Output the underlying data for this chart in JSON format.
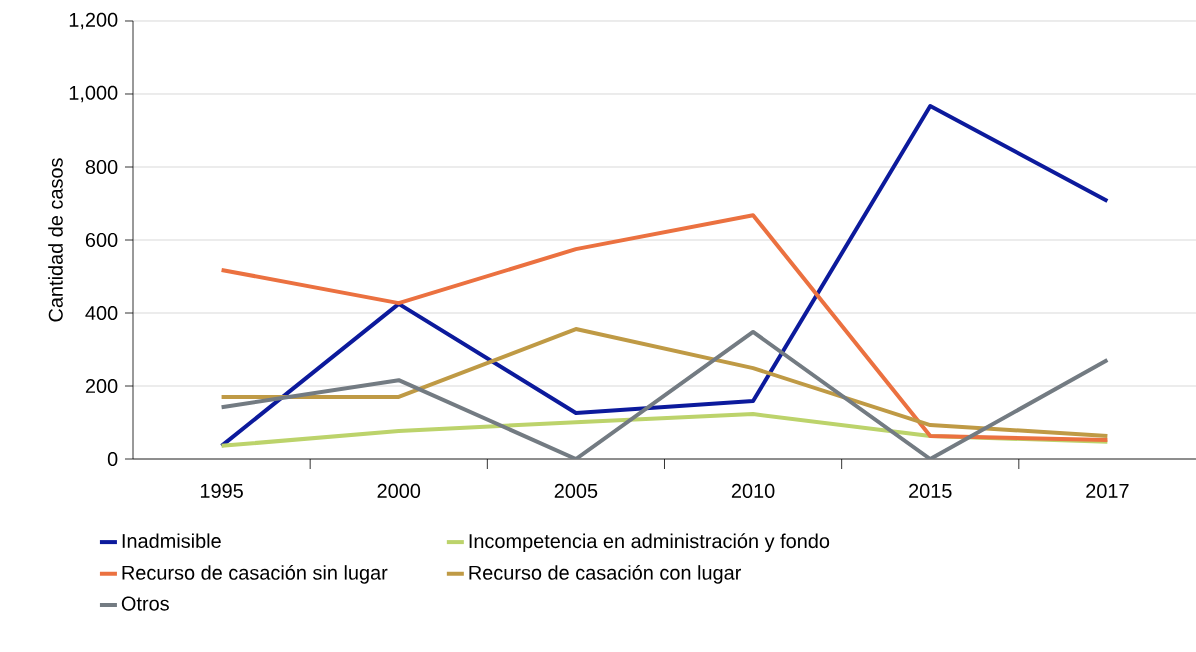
{
  "chart_data": {
    "type": "line",
    "ylabel": "Cantidad de casos",
    "categories": [
      "1995",
      "2000",
      "2005",
      "2010",
      "2015",
      "2017"
    ],
    "ylim": [
      0,
      1200
    ],
    "yticks": [
      0,
      200,
      400,
      600,
      800,
      {
        "value": 1000,
        "label": "1,000"
      },
      {
        "value": 1200,
        "label": "1,200"
      }
    ],
    "grid": "y",
    "legend": "bottom",
    "marker": "none",
    "line_style": "solid",
    "series": [
      {
        "name": "Inadmisible",
        "color": "#0c1a9c",
        "values": [
          36,
          425,
          126,
          159,
          967,
          707
        ]
      },
      {
        "name": "Incompetencia en administración y fondo",
        "color": "#bcd36b",
        "values": [
          36,
          77,
          101,
          123,
          63,
          47
        ]
      },
      {
        "name": "Recurso de casación sin lugar",
        "color": "#eb7140",
        "values": [
          518,
          427,
          575,
          668,
          63,
          52
        ]
      },
      {
        "name": "Recurso de casación con lugar",
        "color": "#bf9a45",
        "values": [
          170,
          170,
          356,
          249,
          93,
          63
        ]
      },
      {
        "name": "Otros",
        "color": "#737b82",
        "values": [
          142,
          216,
          0,
          348,
          0,
          271
        ]
      }
    ]
  }
}
